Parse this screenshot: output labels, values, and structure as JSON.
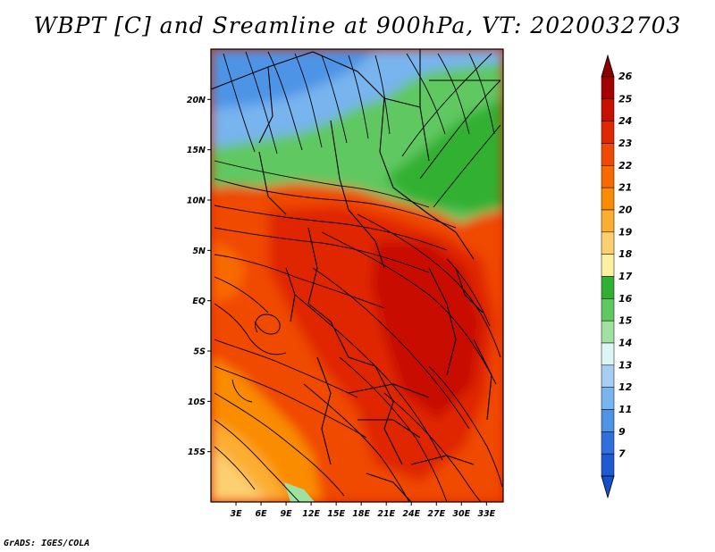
{
  "title": "WBPT [C] and Sreamline at 900hPa, VT: 2020032703",
  "footer": "GrADS: IGES/COLA",
  "map": {
    "lon_range": [
      0,
      35
    ],
    "lat_range": [
      -20,
      25
    ],
    "lat_ticks": [
      {
        "value": 20,
        "label": "20N"
      },
      {
        "value": 15,
        "label": "15N"
      },
      {
        "value": 10,
        "label": "10N"
      },
      {
        "value": 5,
        "label": "5N"
      },
      {
        "value": 0,
        "label": "EQ"
      },
      {
        "value": -5,
        "label": "5S"
      },
      {
        "value": -10,
        "label": "10S"
      },
      {
        "value": -15,
        "label": "15S"
      }
    ],
    "lon_ticks": [
      {
        "value": 3,
        "label": "3E"
      },
      {
        "value": 6,
        "label": "6E"
      },
      {
        "value": 9,
        "label": "9E"
      },
      {
        "value": 12,
        "label": "12E"
      },
      {
        "value": 15,
        "label": "15E"
      },
      {
        "value": 18,
        "label": "18E"
      },
      {
        "value": 21,
        "label": "21E"
      },
      {
        "value": 24,
        "label": "24E"
      },
      {
        "value": 27,
        "label": "27E"
      },
      {
        "value": 30,
        "label": "30E"
      },
      {
        "value": 33,
        "label": "33E"
      }
    ]
  },
  "colorbar": {
    "labels": [
      "26",
      "25",
      "24",
      "23",
      "22",
      "21",
      "20",
      "19",
      "18",
      "17",
      "16",
      "15",
      "14",
      "13",
      "12",
      "11",
      "9",
      "7"
    ],
    "colors": [
      "#a50000",
      "#c81000",
      "#e02800",
      "#f04a00",
      "#f86a00",
      "#fa8c00",
      "#fcae30",
      "#fcd070",
      "#fcf0a0",
      "#30b030",
      "#60c860",
      "#a0e0a0",
      "#dcf5f5",
      "#a6cef5",
      "#78b4ee",
      "#4e94e6",
      "#3070dc",
      "#1e5ad2"
    ],
    "top_color": "#8c0000",
    "bottom_color": "#1450cc"
  }
}
